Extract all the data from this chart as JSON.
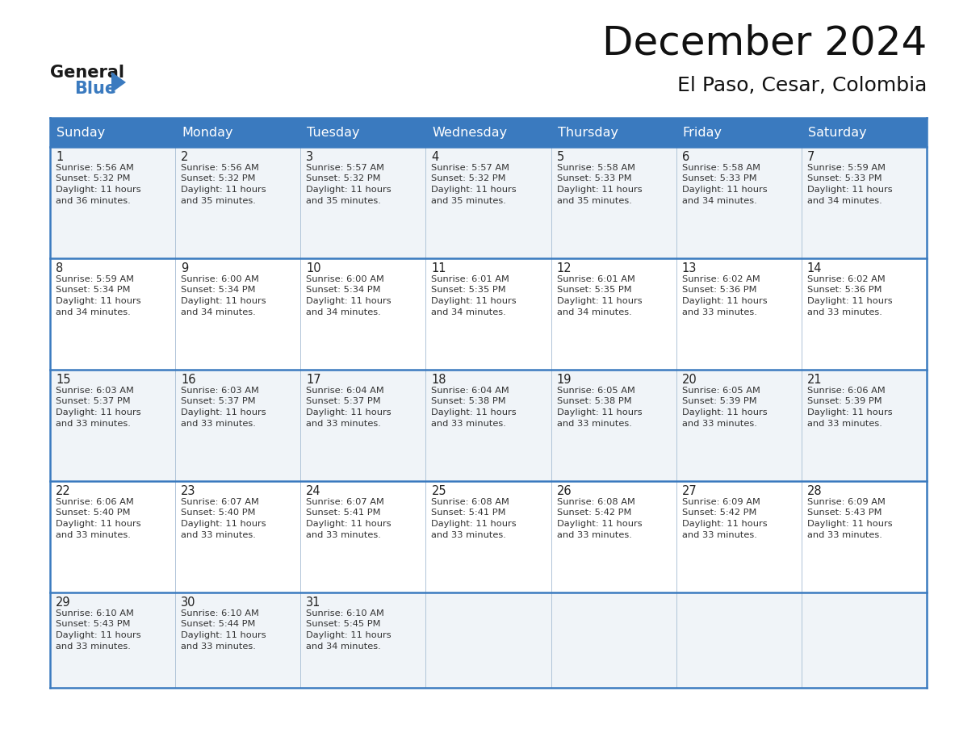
{
  "title": "December 2024",
  "subtitle": "El Paso, Cesar, Colombia",
  "header_color": "#3a7abf",
  "header_text_color": "#ffffff",
  "border_color": "#3a7abf",
  "days_of_week": [
    "Sunday",
    "Monday",
    "Tuesday",
    "Wednesday",
    "Thursday",
    "Friday",
    "Saturday"
  ],
  "calendar_data": [
    [
      {
        "day": 1,
        "sunrise": "5:56 AM",
        "sunset": "5:32 PM",
        "daylight": "11 hours and 36 minutes."
      },
      {
        "day": 2,
        "sunrise": "5:56 AM",
        "sunset": "5:32 PM",
        "daylight": "11 hours and 35 minutes."
      },
      {
        "day": 3,
        "sunrise": "5:57 AM",
        "sunset": "5:32 PM",
        "daylight": "11 hours and 35 minutes."
      },
      {
        "day": 4,
        "sunrise": "5:57 AM",
        "sunset": "5:32 PM",
        "daylight": "11 hours and 35 minutes."
      },
      {
        "day": 5,
        "sunrise": "5:58 AM",
        "sunset": "5:33 PM",
        "daylight": "11 hours and 35 minutes."
      },
      {
        "day": 6,
        "sunrise": "5:58 AM",
        "sunset": "5:33 PM",
        "daylight": "11 hours and 34 minutes."
      },
      {
        "day": 7,
        "sunrise": "5:59 AM",
        "sunset": "5:33 PM",
        "daylight": "11 hours and 34 minutes."
      }
    ],
    [
      {
        "day": 8,
        "sunrise": "5:59 AM",
        "sunset": "5:34 PM",
        "daylight": "11 hours and 34 minutes."
      },
      {
        "day": 9,
        "sunrise": "6:00 AM",
        "sunset": "5:34 PM",
        "daylight": "11 hours and 34 minutes."
      },
      {
        "day": 10,
        "sunrise": "6:00 AM",
        "sunset": "5:34 PM",
        "daylight": "11 hours and 34 minutes."
      },
      {
        "day": 11,
        "sunrise": "6:01 AM",
        "sunset": "5:35 PM",
        "daylight": "11 hours and 34 minutes."
      },
      {
        "day": 12,
        "sunrise": "6:01 AM",
        "sunset": "5:35 PM",
        "daylight": "11 hours and 34 minutes."
      },
      {
        "day": 13,
        "sunrise": "6:02 AM",
        "sunset": "5:36 PM",
        "daylight": "11 hours and 33 minutes."
      },
      {
        "day": 14,
        "sunrise": "6:02 AM",
        "sunset": "5:36 PM",
        "daylight": "11 hours and 33 minutes."
      }
    ],
    [
      {
        "day": 15,
        "sunrise": "6:03 AM",
        "sunset": "5:37 PM",
        "daylight": "11 hours and 33 minutes."
      },
      {
        "day": 16,
        "sunrise": "6:03 AM",
        "sunset": "5:37 PM",
        "daylight": "11 hours and 33 minutes."
      },
      {
        "day": 17,
        "sunrise": "6:04 AM",
        "sunset": "5:37 PM",
        "daylight": "11 hours and 33 minutes."
      },
      {
        "day": 18,
        "sunrise": "6:04 AM",
        "sunset": "5:38 PM",
        "daylight": "11 hours and 33 minutes."
      },
      {
        "day": 19,
        "sunrise": "6:05 AM",
        "sunset": "5:38 PM",
        "daylight": "11 hours and 33 minutes."
      },
      {
        "day": 20,
        "sunrise": "6:05 AM",
        "sunset": "5:39 PM",
        "daylight": "11 hours and 33 minutes."
      },
      {
        "day": 21,
        "sunrise": "6:06 AM",
        "sunset": "5:39 PM",
        "daylight": "11 hours and 33 minutes."
      }
    ],
    [
      {
        "day": 22,
        "sunrise": "6:06 AM",
        "sunset": "5:40 PM",
        "daylight": "11 hours and 33 minutes."
      },
      {
        "day": 23,
        "sunrise": "6:07 AM",
        "sunset": "5:40 PM",
        "daylight": "11 hours and 33 minutes."
      },
      {
        "day": 24,
        "sunrise": "6:07 AM",
        "sunset": "5:41 PM",
        "daylight": "11 hours and 33 minutes."
      },
      {
        "day": 25,
        "sunrise": "6:08 AM",
        "sunset": "5:41 PM",
        "daylight": "11 hours and 33 minutes."
      },
      {
        "day": 26,
        "sunrise": "6:08 AM",
        "sunset": "5:42 PM",
        "daylight": "11 hours and 33 minutes."
      },
      {
        "day": 27,
        "sunrise": "6:09 AM",
        "sunset": "5:42 PM",
        "daylight": "11 hours and 33 minutes."
      },
      {
        "day": 28,
        "sunrise": "6:09 AM",
        "sunset": "5:43 PM",
        "daylight": "11 hours and 33 minutes."
      }
    ],
    [
      {
        "day": 29,
        "sunrise": "6:10 AM",
        "sunset": "5:43 PM",
        "daylight": "11 hours and 33 minutes."
      },
      {
        "day": 30,
        "sunrise": "6:10 AM",
        "sunset": "5:44 PM",
        "daylight": "11 hours and 33 minutes."
      },
      {
        "day": 31,
        "sunrise": "6:10 AM",
        "sunset": "5:45 PM",
        "daylight": "11 hours and 34 minutes."
      },
      null,
      null,
      null,
      null
    ]
  ]
}
